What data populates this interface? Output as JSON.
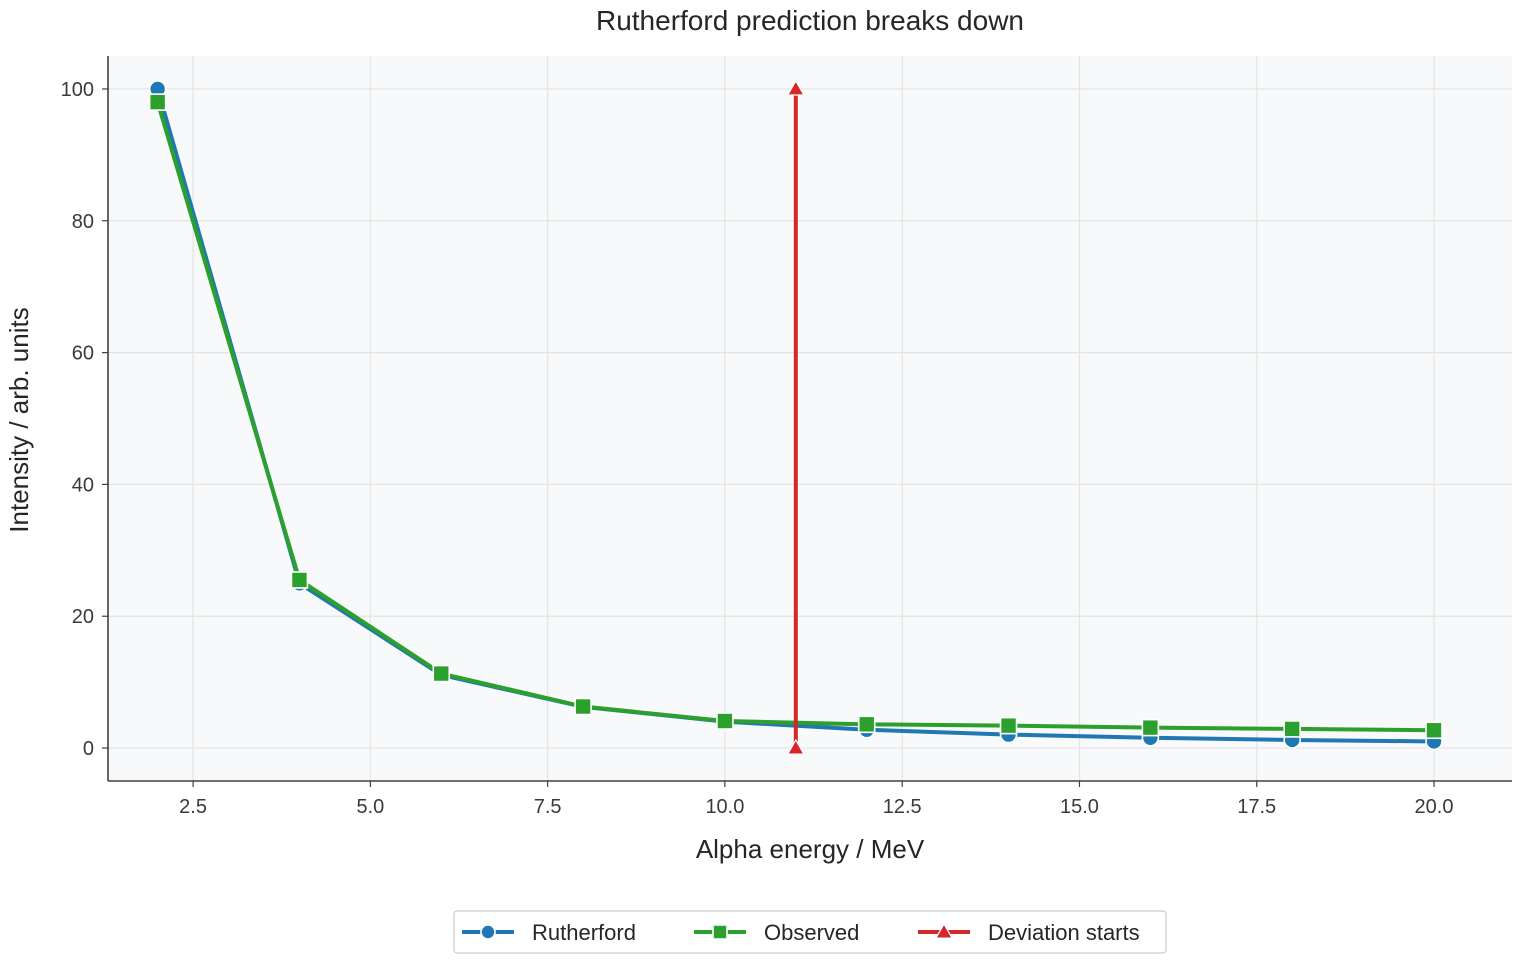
{
  "chart_data": {
    "type": "line",
    "title": "Rutherford prediction breaks down",
    "xlabel": "Alpha energy / MeV",
    "ylabel": "Intensity / arb. units",
    "xlim": [
      1.3,
      21.1
    ],
    "ylim": [
      -5,
      105
    ],
    "xticks": [
      2.5,
      5.0,
      7.5,
      10.0,
      12.5,
      15.0,
      17.5,
      20.0
    ],
    "xtick_labels": [
      "2.5",
      "5.0",
      "7.5",
      "10.0",
      "12.5",
      "15.0",
      "17.5",
      "20.0"
    ],
    "yticks": [
      0,
      20,
      40,
      60,
      80,
      100
    ],
    "ytick_labels": [
      "0",
      "20",
      "40",
      "60",
      "80",
      "100"
    ],
    "grid": true,
    "legend_position": "bottom-center",
    "series": [
      {
        "name": "Rutherford",
        "color": "#1f77b4",
        "marker": "circle",
        "x": [
          2,
          4,
          6,
          8,
          10,
          12,
          14,
          16,
          18,
          20
        ],
        "y": [
          100,
          25.0,
          11.1,
          6.25,
          4.0,
          2.78,
          2.04,
          1.56,
          1.23,
          1.0
        ]
      },
      {
        "name": "Observed",
        "color": "#2ca02c",
        "marker": "square",
        "x": [
          2,
          4,
          6,
          8,
          10,
          12,
          14,
          16,
          18,
          20
        ],
        "y": [
          98,
          25.5,
          11.3,
          6.3,
          4.1,
          3.6,
          3.4,
          3.1,
          2.9,
          2.7
        ]
      },
      {
        "name": "Deviation starts",
        "color": "#d62728",
        "marker": "triangle",
        "x": [
          11,
          11
        ],
        "y": [
          0,
          100
        ]
      }
    ]
  }
}
